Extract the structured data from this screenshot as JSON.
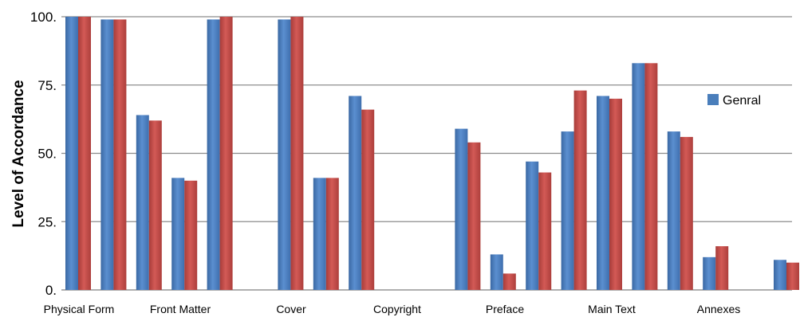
{
  "chart_data": {
    "type": "bar",
    "title": "",
    "xlabel": "",
    "ylabel": "Level of Accordance",
    "ylim": [
      0,
      100
    ],
    "yticks": [
      {
        "value": 0,
        "label": "0."
      },
      {
        "value": 25,
        "label": "25."
      },
      {
        "value": 50,
        "label": "50."
      },
      {
        "value": 75,
        "label": "75."
      },
      {
        "value": 100,
        "label": "100."
      }
    ],
    "grid": true,
    "legend_position": "right",
    "x_group_labels": [
      "Physical Form",
      "Front Matter",
      "Cover",
      "Copyright",
      "Preface",
      "Main Text",
      "Annexes"
    ],
    "series": [
      {
        "name": "Genral",
        "color": "#4a7ebb",
        "values": [
          100,
          99,
          64,
          41,
          99,
          null,
          99,
          41,
          71,
          null,
          null,
          59,
          13,
          47,
          58,
          71,
          83,
          58,
          12,
          null,
          11
        ]
      },
      {
        "name": "",
        "color": "#be4b48",
        "values": [
          100,
          99,
          62,
          40,
          100,
          null,
          100,
          41,
          66,
          null,
          null,
          54,
          6,
          43,
          73,
          70,
          83,
          56,
          16,
          null,
          10
        ]
      }
    ],
    "bar_slots": 21
  }
}
